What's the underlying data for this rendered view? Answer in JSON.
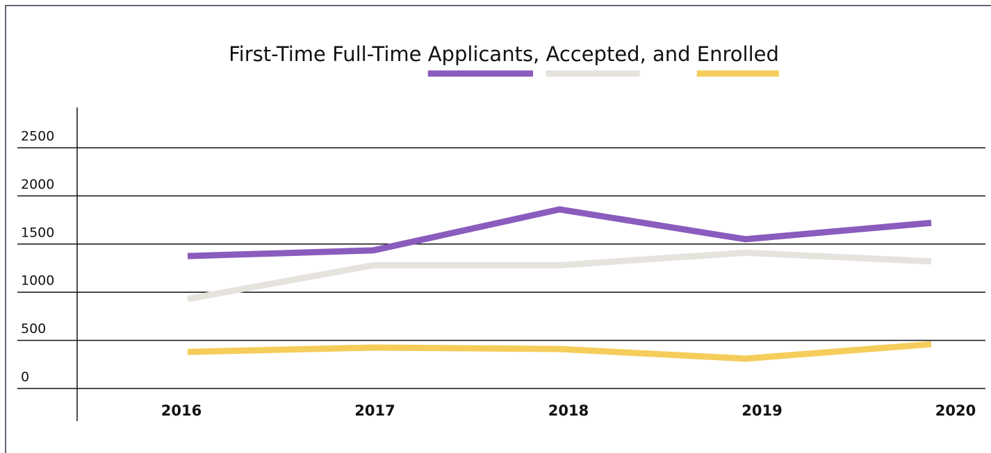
{
  "chart_data": {
    "type": "line",
    "title": "First-Time Full-Time Applicants, Accepted, and Enrolled",
    "categories": [
      "2016",
      "2017",
      "2018",
      "2019",
      "2020"
    ],
    "series": [
      {
        "name": "Applicants",
        "color": "#8a5cbd",
        "values": [
          1375,
          1435,
          1860,
          1550,
          1720
        ]
      },
      {
        "name": "Accepted",
        "color": "#e6e2de",
        "values": [
          930,
          1280,
          1280,
          1410,
          1320
        ]
      },
      {
        "name": "Enrolled",
        "color": "#f5cd5b",
        "values": [
          380,
          425,
          410,
          310,
          460
        ]
      }
    ],
    "ylim": [
      0,
      2500
    ],
    "yticks": [
      0,
      500,
      1000,
      1500,
      2000,
      2500
    ],
    "grid": true
  }
}
